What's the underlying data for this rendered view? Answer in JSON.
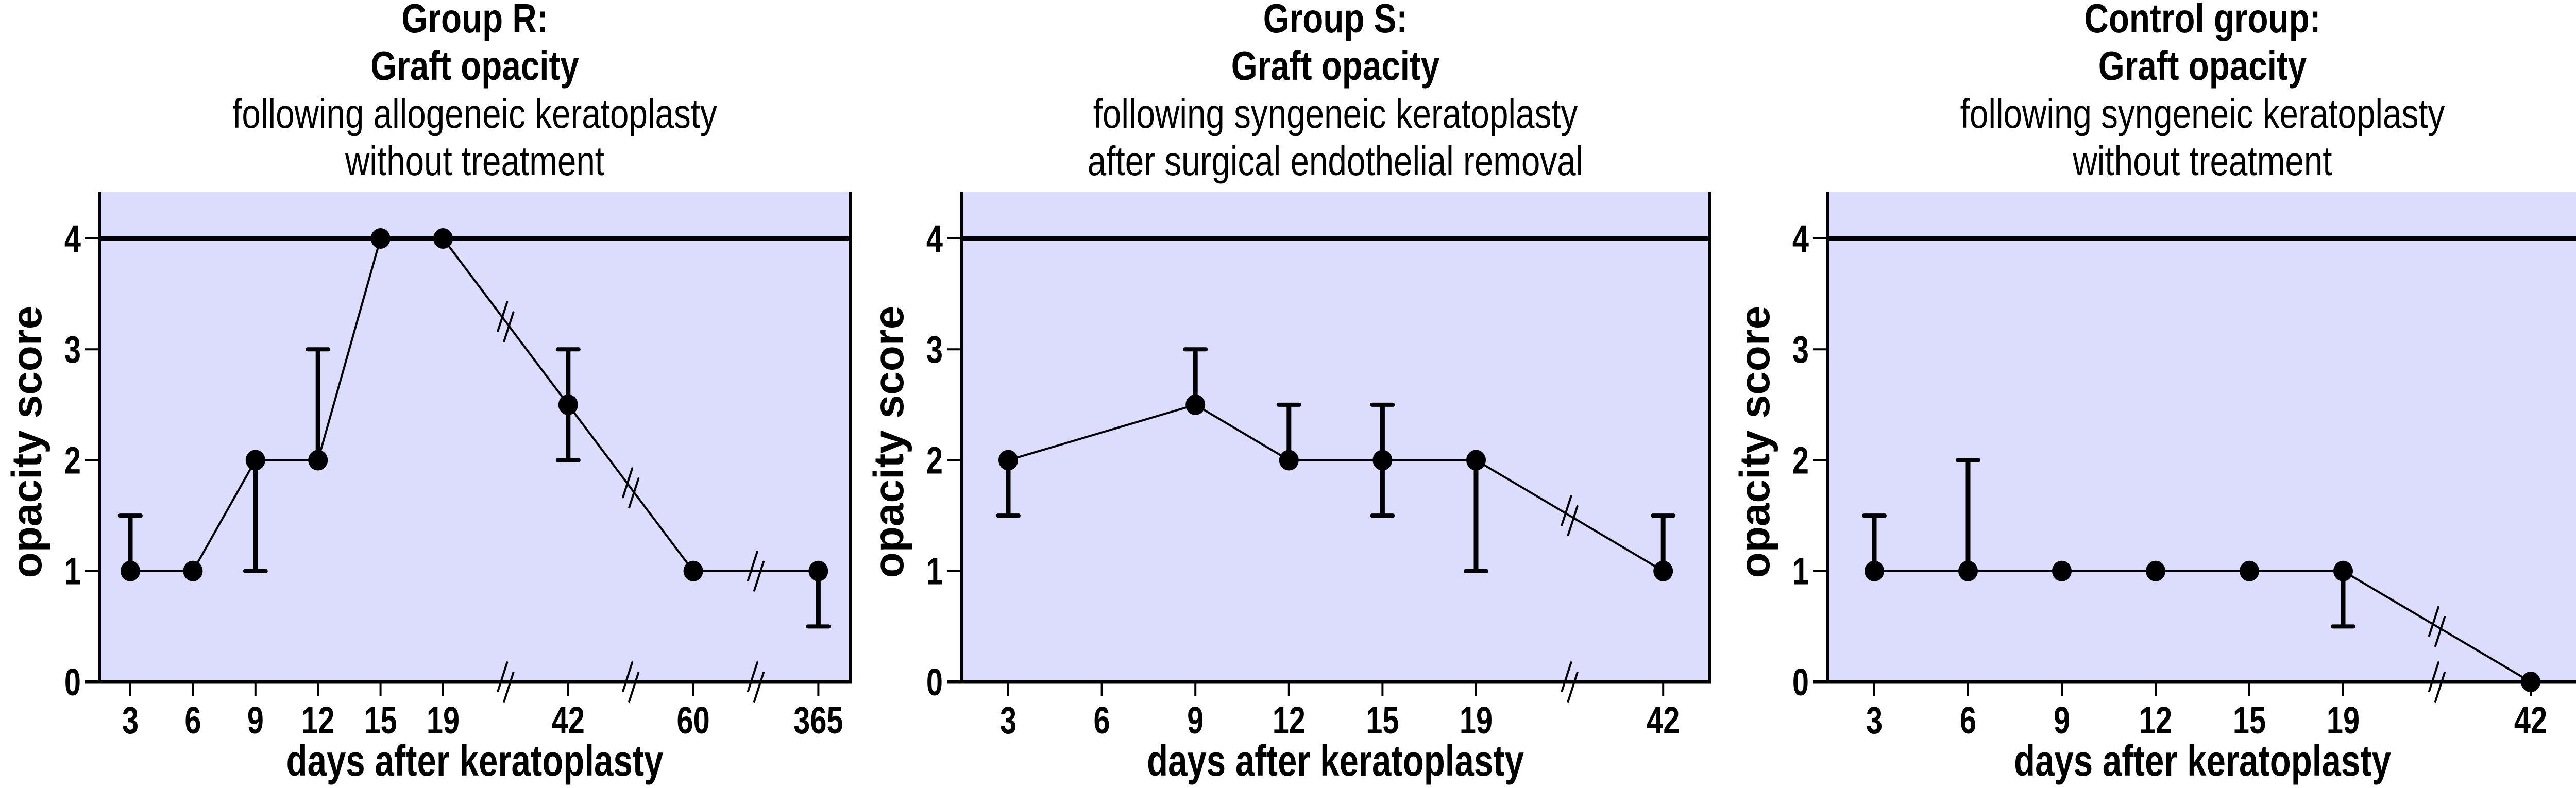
{
  "colors": {
    "plot_background": "#dcdcfc",
    "ink": "#000000"
  },
  "chart_data": [
    {
      "type": "line",
      "title_lines": [
        "Group R:",
        "Graft opacity",
        "following allogeneic keratoplasty",
        "without treatment"
      ],
      "title_bold_lines": 2,
      "xlabel": "days after keratoplasty",
      "ylabel": "opacity score",
      "ylim": [
        0,
        4.4
      ],
      "yticks": [
        0,
        1,
        2,
        3,
        4
      ],
      "x_scale": "categorical with axis breaks",
      "x_categories": [
        "3",
        "6",
        "9",
        "12",
        "15",
        "19",
        "//",
        "42",
        "//",
        "60",
        "//",
        "365"
      ],
      "axis_breaks_after": [
        "19",
        "42",
        "60"
      ],
      "reference_line": 4,
      "grid": false,
      "series": [
        {
          "name": "Group R",
          "points": [
            {
              "x": "3",
              "y": 1,
              "err_low": 1,
              "err_high": 1.5
            },
            {
              "x": "6",
              "y": 1,
              "err_low": 1,
              "err_high": 1
            },
            {
              "x": "9",
              "y": 2,
              "err_low": 1,
              "err_high": 2
            },
            {
              "x": "12",
              "y": 2,
              "err_low": 2,
              "err_high": 3
            },
            {
              "x": "15",
              "y": 4,
              "err_low": 4,
              "err_high": 4
            },
            {
              "x": "19",
              "y": 4,
              "err_low": 4,
              "err_high": 4
            },
            {
              "x": "42",
              "y": 2.5,
              "err_low": 2,
              "err_high": 3
            },
            {
              "x": "60",
              "y": 1,
              "err_low": 1,
              "err_high": 1
            },
            {
              "x": "365",
              "y": 1,
              "err_low": 0.5,
              "err_high": 1
            }
          ]
        }
      ]
    },
    {
      "type": "line",
      "title_lines": [
        "Group  S:",
        "Graft opacity",
        "following syngeneic keratoplasty",
        "after surgical endothelial removal"
      ],
      "title_bold_lines": 2,
      "xlabel": "days after keratoplasty",
      "ylabel": "opacity score",
      "ylim": [
        0,
        4.4
      ],
      "yticks": [
        0,
        1,
        2,
        3,
        4
      ],
      "x_scale": "categorical with axis breaks",
      "x_categories": [
        "3",
        "6",
        "9",
        "12",
        "15",
        "19",
        "//",
        "42"
      ],
      "axis_breaks_after": [
        "19"
      ],
      "reference_line": 4,
      "grid": false,
      "series": [
        {
          "name": "Group S",
          "points": [
            {
              "x": "3",
              "y": 2,
              "err_low": 1.5,
              "err_high": 2
            },
            {
              "x": "9",
              "y": 2.5,
              "err_low": 2.5,
              "err_high": 3
            },
            {
              "x": "12",
              "y": 2,
              "err_low": 2,
              "err_high": 2.5
            },
            {
              "x": "15",
              "y": 2,
              "err_low": 1.5,
              "err_high": 2.5
            },
            {
              "x": "19",
              "y": 2,
              "err_low": 1,
              "err_high": 2
            },
            {
              "x": "42",
              "y": 1,
              "err_low": 1,
              "err_high": 1.5
            }
          ]
        }
      ]
    },
    {
      "type": "line",
      "title_lines": [
        "Control group:",
        "Graft opacity",
        "following syngeneic keratoplasty",
        "without treatment"
      ],
      "title_bold_lines": 2,
      "xlabel": "days after keratoplasty",
      "ylabel": "opacity score",
      "ylim": [
        0,
        4.4
      ],
      "yticks": [
        0,
        1,
        2,
        3,
        4
      ],
      "x_scale": "categorical with axis breaks",
      "x_categories": [
        "3",
        "6",
        "9",
        "12",
        "15",
        "19",
        "//",
        "42"
      ],
      "axis_breaks_after": [
        "19"
      ],
      "reference_line": 4,
      "grid": false,
      "series": [
        {
          "name": "Control group",
          "points": [
            {
              "x": "3",
              "y": 1,
              "err_low": 1,
              "err_high": 1.5
            },
            {
              "x": "6",
              "y": 1,
              "err_low": 1,
              "err_high": 2
            },
            {
              "x": "9",
              "y": 1,
              "err_low": 1,
              "err_high": 1
            },
            {
              "x": "12",
              "y": 1,
              "err_low": 1,
              "err_high": 1
            },
            {
              "x": "15",
              "y": 1,
              "err_low": 1,
              "err_high": 1
            },
            {
              "x": "19",
              "y": 1,
              "err_low": 0.5,
              "err_high": 1
            },
            {
              "x": "42",
              "y": 0,
              "err_low": 0,
              "err_high": 0
            }
          ]
        }
      ]
    }
  ]
}
